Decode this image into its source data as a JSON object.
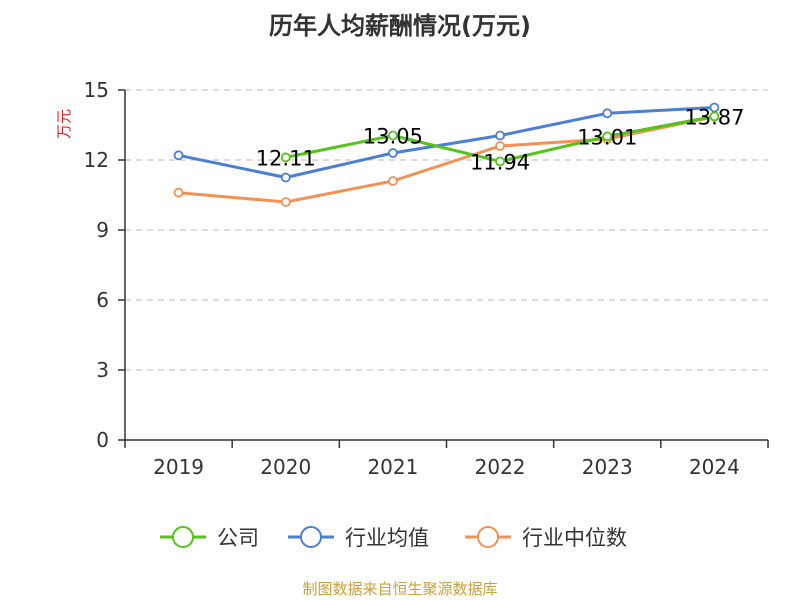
{
  "chart_data": {
    "type": "line",
    "title": "历年人均薪酬情况(万元)",
    "ylabel": "万元",
    "xlabel": "",
    "categories": [
      "2019",
      "2020",
      "2021",
      "2022",
      "2023",
      "2024"
    ],
    "ylim": [
      0,
      15
    ],
    "yticks": [
      0,
      3,
      6,
      9,
      12,
      15
    ],
    "grid": true,
    "legend_position": "bottom",
    "series": [
      {
        "name": "公司",
        "color": "#52c41a",
        "values": [
          null,
          12.11,
          13.05,
          11.94,
          13.01,
          13.87
        ],
        "labels": [
          "",
          "12.11",
          "13.05",
          "11.94",
          "13.01",
          "13.87"
        ]
      },
      {
        "name": "行业均值",
        "color": "#4a7fd6",
        "values": [
          12.2,
          11.25,
          12.3,
          13.05,
          14.0,
          14.25
        ]
      },
      {
        "name": "行业中位数",
        "color": "#f59054",
        "values": [
          10.6,
          10.2,
          11.1,
          12.6,
          12.9,
          13.85
        ]
      }
    ]
  },
  "footer": {
    "source": "制图数据来自恒生聚源数据库"
  }
}
